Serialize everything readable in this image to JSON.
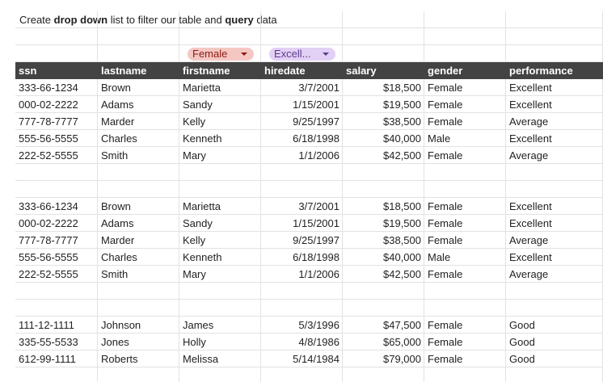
{
  "note": {
    "segments": [
      {
        "text": "Create ",
        "bold": false
      },
      {
        "text": "drop down",
        "bold": true
      },
      {
        "text": " list to filter our table and ",
        "bold": false
      },
      {
        "text": "query",
        "bold": true
      },
      {
        "text": " data",
        "bold": false
      }
    ]
  },
  "filters": [
    "Female",
    "Excell..."
  ],
  "header": [
    "ssn",
    "lastname",
    "firstname",
    "hiredate",
    "salary",
    "gender",
    "performance"
  ],
  "tables": [
    {
      "rows": [
        [
          "333-66-1234",
          "Brown",
          "Marietta",
          "3/7/2001",
          "$18,500",
          "Female",
          "Excellent"
        ],
        [
          "000-02-2222",
          "Adams",
          "Sandy",
          "1/15/2001",
          "$19,500",
          "Female",
          "Excellent"
        ],
        [
          "777-78-7777",
          "Marder",
          "Kelly",
          "9/25/1997",
          "$38,500",
          "Female",
          "Average"
        ],
        [
          "555-56-5555",
          "Charles",
          "Kenneth",
          "6/18/1998",
          "$40,000",
          "Male",
          "Excellent"
        ],
        [
          "222-52-5555",
          "Smith",
          "Mary",
          "1/1/2006",
          "$42,500",
          "Female",
          "Average"
        ]
      ]
    },
    {
      "rows": [
        [
          "333-66-1234",
          "Brown",
          "Marietta",
          "3/7/2001",
          "$18,500",
          "Female",
          "Excellent"
        ],
        [
          "000-02-2222",
          "Adams",
          "Sandy",
          "1/15/2001",
          "$19,500",
          "Female",
          "Excellent"
        ],
        [
          "777-78-7777",
          "Marder",
          "Kelly",
          "9/25/1997",
          "$38,500",
          "Female",
          "Average"
        ],
        [
          "555-56-5555",
          "Charles",
          "Kenneth",
          "6/18/1998",
          "$40,000",
          "Male",
          "Excellent"
        ],
        [
          "222-52-5555",
          "Smith",
          "Mary",
          "1/1/2006",
          "$42,500",
          "Female",
          "Average"
        ]
      ]
    },
    {
      "rows": [
        [
          "111-12-1111",
          "Johnson",
          "James",
          "5/3/1996",
          "$47,500",
          "Female",
          "Good"
        ],
        [
          "335-55-5533",
          "Jones",
          "Holly",
          "4/8/1986",
          "$65,000",
          "Female",
          "Good"
        ],
        [
          "612-99-1111",
          "Roberts",
          "Melissa",
          "5/14/1984",
          "$79,000",
          "Female",
          "Good"
        ]
      ]
    }
  ]
}
